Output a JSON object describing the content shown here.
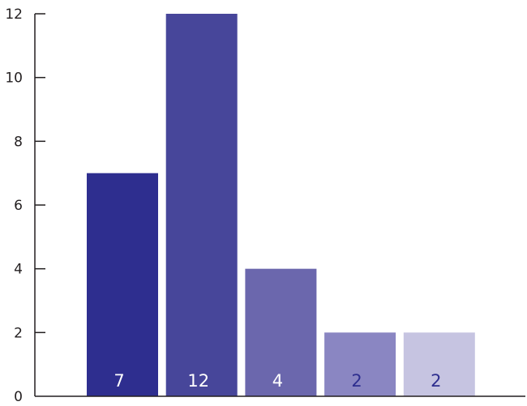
{
  "chart_data": {
    "type": "bar",
    "title": "",
    "xlabel": "",
    "ylabel": "",
    "ylim": [
      0,
      12
    ],
    "y_ticks": [
      0,
      2,
      4,
      6,
      8,
      10,
      12
    ],
    "grid": false,
    "legend": "none",
    "categories": [
      "",
      "",
      "",
      "",
      ""
    ],
    "values": [
      7,
      12,
      4,
      2,
      2
    ],
    "bar_colors": [
      "#2e2e8f",
      "#47469a",
      "#6b67ad",
      "#8a86c2",
      "#c6c4e1"
    ],
    "label_colors": [
      "#ffffff",
      "#ffffff",
      "#ffffff",
      "#2e2e8f",
      "#2e2e8f"
    ],
    "axis_color": "#231f20"
  }
}
